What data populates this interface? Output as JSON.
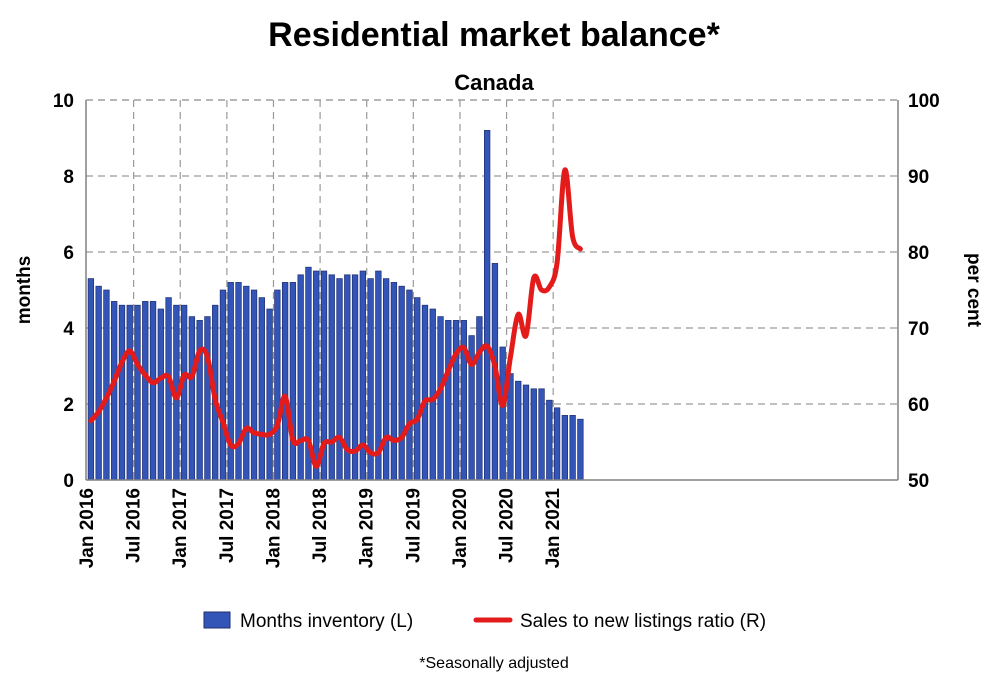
{
  "chart_data": {
    "type": "bar+line",
    "title": "Residential market balance*",
    "subtitle": "Canada",
    "ylabel_left": "months",
    "ylabel_right": "per cent",
    "ylim_left": [
      0,
      10
    ],
    "ylim_right": [
      50,
      100
    ],
    "yticks_left": [
      "0",
      "2",
      "4",
      "6",
      "8",
      "10"
    ],
    "yticks_right": [
      "50",
      "60",
      "70",
      "80",
      "90",
      "100"
    ],
    "x_tick_labels": [
      "Jan 2016",
      "Jul 2016",
      "Jan 2017",
      "Jul 2017",
      "Jan 2018",
      "Jul 2018",
      "Jan 2019",
      "Jul 2019",
      "Jan 2020",
      "Jul 2020",
      "Jan 2021"
    ],
    "grid": "dashed",
    "legend_position": "bottom",
    "footnote": "*Seasonally adjusted",
    "colors": {
      "bars": "#3355b8",
      "bar_edge": "#1f2f70",
      "line": "#e41b1b",
      "grid": "#9a9a9a"
    },
    "months": [
      "2016-01",
      "2016-02",
      "2016-03",
      "2016-04",
      "2016-05",
      "2016-06",
      "2016-07",
      "2016-08",
      "2016-09",
      "2016-10",
      "2016-11",
      "2016-12",
      "2017-01",
      "2017-02",
      "2017-03",
      "2017-04",
      "2017-05",
      "2017-06",
      "2017-07",
      "2017-08",
      "2017-09",
      "2017-10",
      "2017-11",
      "2017-12",
      "2018-01",
      "2018-02",
      "2018-03",
      "2018-04",
      "2018-05",
      "2018-06",
      "2018-07",
      "2018-08",
      "2018-09",
      "2018-10",
      "2018-11",
      "2018-12",
      "2019-01",
      "2019-02",
      "2019-03",
      "2019-04",
      "2019-05",
      "2019-06",
      "2019-07",
      "2019-08",
      "2019-09",
      "2019-10",
      "2019-11",
      "2019-12",
      "2020-01",
      "2020-02",
      "2020-03",
      "2020-04",
      "2020-05",
      "2020-06",
      "2020-07",
      "2020-08",
      "2020-09",
      "2020-10",
      "2020-11",
      "2020-12",
      "2021-01",
      "2021-02",
      "2021-03",
      "2021-04"
    ],
    "series": [
      {
        "name": "Months inventory (L)",
        "type": "bar",
        "axis": "left",
        "values": [
          5.3,
          5.1,
          5.0,
          4.7,
          4.6,
          4.6,
          4.6,
          4.7,
          4.7,
          4.5,
          4.8,
          4.6,
          4.6,
          4.3,
          4.2,
          4.3,
          4.6,
          5.0,
          5.2,
          5.2,
          5.1,
          5.0,
          4.8,
          4.5,
          5.0,
          5.2,
          5.2,
          5.4,
          5.6,
          5.5,
          5.5,
          5.4,
          5.3,
          5.4,
          5.4,
          5.5,
          5.3,
          5.5,
          5.3,
          5.2,
          5.1,
          5.0,
          4.8,
          4.6,
          4.5,
          4.3,
          4.2,
          4.2,
          4.2,
          3.8,
          4.3,
          9.2,
          5.7,
          3.5,
          2.8,
          2.6,
          2.5,
          2.4,
          2.4,
          2.1,
          1.9,
          1.7,
          1.7,
          1.6
        ]
      },
      {
        "name": "Sales to new listings ratio (R)",
        "type": "line",
        "axis": "right",
        "values": [
          57.8,
          59.0,
          60.8,
          63.0,
          65.5,
          67.0,
          65.2,
          63.8,
          62.8,
          63.4,
          63.6,
          60.8,
          63.8,
          63.6,
          67.0,
          66.2,
          60.6,
          57.6,
          54.6,
          54.8,
          56.8,
          56.2,
          56.0,
          56.0,
          57.2,
          61.0,
          55.2,
          55.2,
          55.2,
          51.8,
          54.8,
          55.0,
          55.6,
          54.0,
          53.8,
          54.6,
          53.6,
          53.6,
          55.6,
          55.2,
          55.6,
          57.4,
          58.0,
          60.4,
          60.6,
          62.0,
          64.4,
          66.6,
          67.4,
          65.2,
          66.8,
          67.6,
          65.0,
          59.8,
          66.2,
          71.8,
          69.0,
          76.6,
          75.0,
          75.4,
          78.6,
          90.8,
          82.0,
          80.4
        ]
      }
    ]
  }
}
